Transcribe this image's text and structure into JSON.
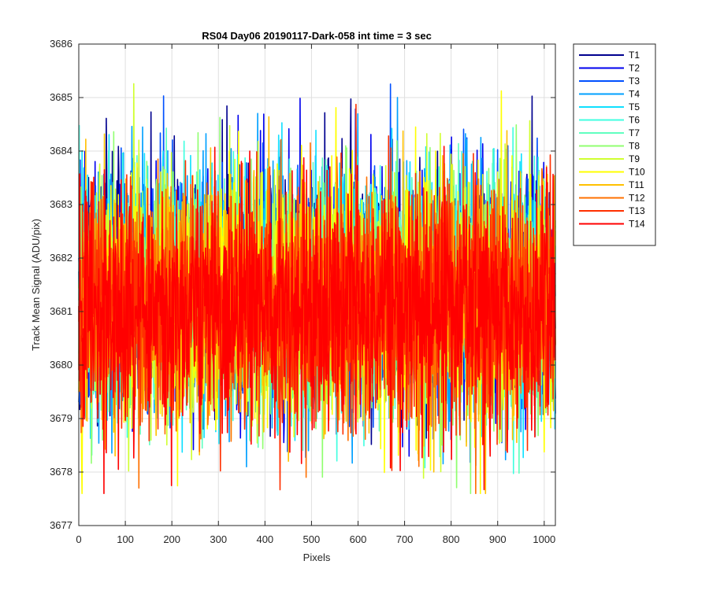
{
  "chart_data": {
    "type": "line",
    "title": "RS04 Day06 20190117-Dark-058 int time = 3 sec",
    "xlabel": "Pixels",
    "ylabel": "Track Mean Signal (ADU/pix)",
    "xlim": [
      0,
      1024
    ],
    "ylim": [
      3677,
      3686
    ],
    "x_ticks": [
      "0",
      "100",
      "200",
      "300",
      "400",
      "500",
      "600",
      "700",
      "800",
      "900",
      "1000"
    ],
    "y_ticks": [
      "3677",
      "3678",
      "3679",
      "3680",
      "3681",
      "3682",
      "3683",
      "3684",
      "3685",
      "3686"
    ],
    "grid": true,
    "legend_placement": "outside-right",
    "n_points_per_series": 1024,
    "noise_description": "Each series is per-pixel dark signal noise around a mean of ~3681.2 ADU/pix with a standard deviation of ~1.1 ADU/pix (range roughly 3677.6–3685.9).",
    "series": [
      {
        "name": "T1",
        "color": "#00008f",
        "mean": 3681.5,
        "std": 1.1
      },
      {
        "name": "T2",
        "color": "#0000ee",
        "mean": 3681.5,
        "std": 1.1
      },
      {
        "name": "T3",
        "color": "#0050ff",
        "mean": 3681.4,
        "std": 1.1
      },
      {
        "name": "T4",
        "color": "#00a0ff",
        "mean": 3681.4,
        "std": 1.1
      },
      {
        "name": "T5",
        "color": "#10e0ff",
        "mean": 3681.4,
        "std": 1.1
      },
      {
        "name": "T6",
        "color": "#40ffe0",
        "mean": 3681.3,
        "std": 1.1
      },
      {
        "name": "T7",
        "color": "#60ffc0",
        "mean": 3681.3,
        "std": 1.1
      },
      {
        "name": "T8",
        "color": "#90ff70",
        "mean": 3681.3,
        "std": 1.1
      },
      {
        "name": "T9",
        "color": "#d0ff30",
        "mean": 3681.2,
        "std": 1.1
      },
      {
        "name": "T10",
        "color": "#ffff00",
        "mean": 3681.2,
        "std": 1.1
      },
      {
        "name": "T11",
        "color": "#ffc000",
        "mean": 3681.2,
        "std": 1.1
      },
      {
        "name": "T12",
        "color": "#ff7000",
        "mean": 3681.1,
        "std": 1.1
      },
      {
        "name": "T13",
        "color": "#ff3000",
        "mean": 3681.1,
        "std": 1.1
      },
      {
        "name": "T14",
        "color": "#ff0000",
        "mean": 3681.1,
        "std": 1.1
      }
    ]
  }
}
